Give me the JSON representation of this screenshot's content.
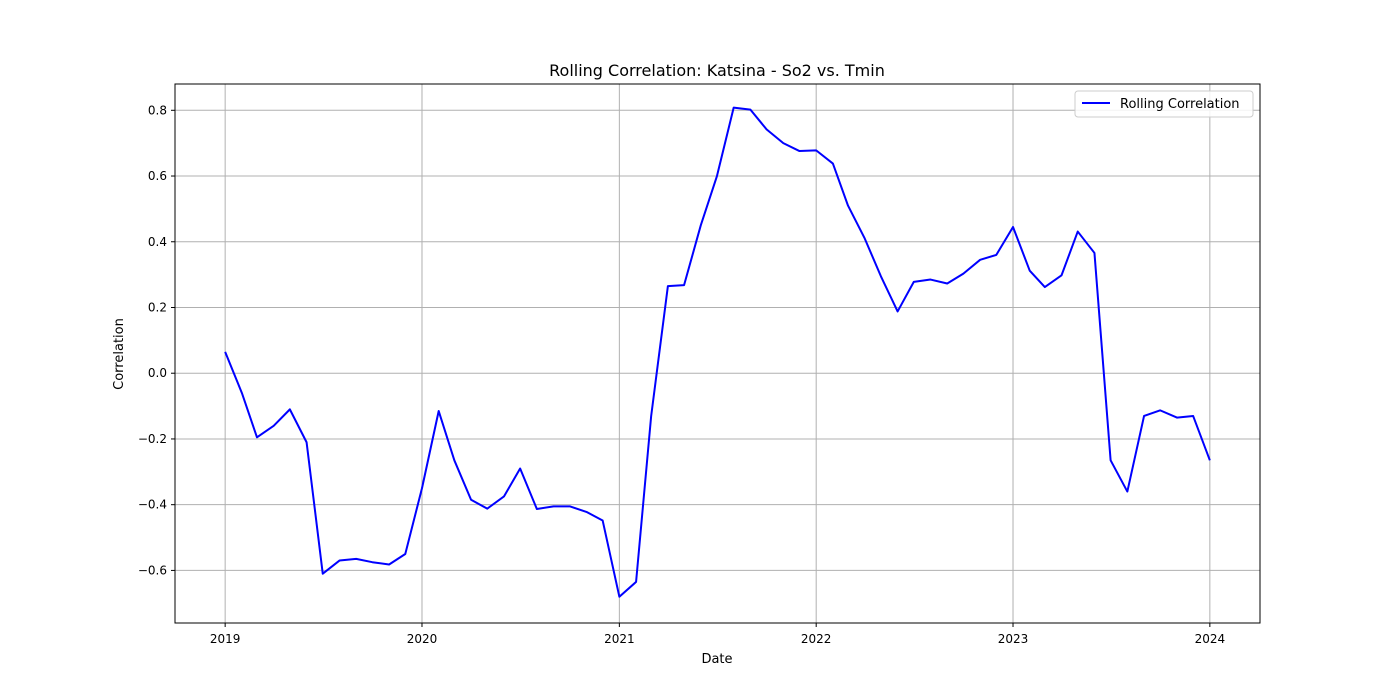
{
  "chart_data": {
    "type": "line",
    "title": "Rolling Correlation: Katsina - So2 vs. Tmin",
    "xlabel": "Date",
    "ylabel": "Correlation",
    "x_axis": "date",
    "xlim": [
      "2018-09-30",
      "2024-04-03"
    ],
    "ylim": [
      -0.76,
      0.88
    ],
    "x_ticks": [
      "2019-01-01",
      "2020-01-01",
      "2021-01-01",
      "2022-01-01",
      "2023-01-01",
      "2024-01-01"
    ],
    "x_tick_labels": [
      "2019",
      "2020",
      "2021",
      "2022",
      "2023",
      "2024"
    ],
    "y_ticks": [
      -0.6,
      -0.4,
      -0.2,
      0.0,
      0.2,
      0.4,
      0.6,
      0.8
    ],
    "y_tick_labels": [
      "−0.6",
      "−0.4",
      "−0.2",
      "0.0",
      "0.2",
      "0.4",
      "0.6",
      "0.8"
    ],
    "grid": true,
    "legend_position": "top-right",
    "series": [
      {
        "name": "Rolling Correlation",
        "color": "#0000ff",
        "x": [
          "2019-01-01",
          "2019-02-01",
          "2019-03-01",
          "2019-04-01",
          "2019-05-01",
          "2019-06-01",
          "2019-07-01",
          "2019-08-01",
          "2019-09-01",
          "2019-10-01",
          "2019-11-01",
          "2019-12-01",
          "2020-01-01",
          "2020-02-01",
          "2020-03-01",
          "2020-04-01",
          "2020-05-01",
          "2020-06-01",
          "2020-07-01",
          "2020-08-01",
          "2020-09-01",
          "2020-10-01",
          "2020-11-01",
          "2020-12-01",
          "2021-01-01",
          "2021-02-01",
          "2021-03-01",
          "2021-04-01",
          "2021-05-01",
          "2021-06-01",
          "2021-07-01",
          "2021-08-01",
          "2021-09-01",
          "2021-10-01",
          "2021-11-01",
          "2021-12-01",
          "2022-01-01",
          "2022-02-01",
          "2022-03-01",
          "2022-04-01",
          "2022-05-01",
          "2022-06-01",
          "2022-07-01",
          "2022-08-01",
          "2022-09-01",
          "2022-10-01",
          "2022-11-01",
          "2022-12-01",
          "2023-01-01",
          "2023-02-01",
          "2023-03-01",
          "2023-04-01",
          "2023-05-01",
          "2023-06-01",
          "2023-07-01",
          "2023-08-01",
          "2023-09-01",
          "2023-10-01",
          "2023-11-01",
          "2023-12-01",
          "2024-01-01"
        ],
        "y": [
          0.065,
          -0.06,
          -0.195,
          -0.16,
          -0.11,
          -0.21,
          -0.61,
          -0.57,
          -0.565,
          -0.575,
          -0.582,
          -0.55,
          -0.35,
          -0.115,
          -0.265,
          -0.385,
          -0.412,
          -0.375,
          -0.29,
          -0.413,
          -0.405,
          -0.405,
          -0.422,
          -0.448,
          -0.68,
          -0.635,
          -0.13,
          0.265,
          0.268,
          0.45,
          0.6,
          0.808,
          0.802,
          0.742,
          0.7,
          0.676,
          0.678,
          0.638,
          0.51,
          0.41,
          0.295,
          0.188,
          0.278,
          0.285,
          0.273,
          0.303,
          0.345,
          0.36,
          0.445,
          0.312,
          0.262,
          0.298,
          0.431,
          0.366,
          -0.265,
          -0.36,
          -0.13,
          -0.113,
          -0.135,
          -0.13,
          -0.265
        ]
      }
    ]
  }
}
